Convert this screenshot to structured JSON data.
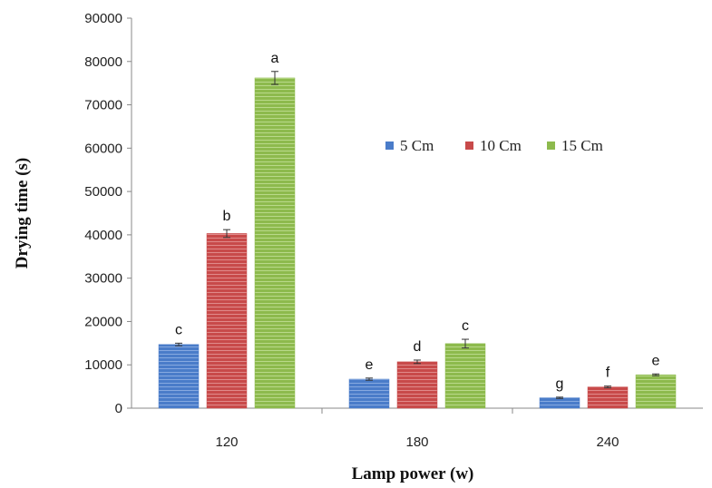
{
  "chart_data": {
    "type": "bar",
    "xlabel": "Lamp power (w)",
    "ylabel": "Drying time (s)",
    "ylim": [
      0,
      90000
    ],
    "yticks": [
      0,
      10000,
      20000,
      30000,
      40000,
      50000,
      60000,
      70000,
      80000,
      90000
    ],
    "categories": [
      "120",
      "180",
      "240"
    ],
    "legend_position": "upper-right-center",
    "grid": false,
    "series": [
      {
        "name": "5 Cm",
        "color": "#4a7cc9",
        "values": [
          14700,
          6700,
          2400
        ],
        "errors": [
          300,
          250,
          150
        ],
        "labels": [
          "c",
          "e",
          "g"
        ]
      },
      {
        "name": "10 Cm",
        "color": "#c84a4a",
        "values": [
          40300,
          10700,
          4900
        ],
        "errors": [
          900,
          400,
          200
        ],
        "labels": [
          "b",
          "d",
          "f"
        ]
      },
      {
        "name": "15 Cm",
        "color": "#8dba4d",
        "values": [
          76200,
          14900,
          7700
        ],
        "errors": [
          1500,
          1000,
          200
        ],
        "labels": [
          "a",
          "c",
          "e"
        ]
      }
    ]
  }
}
